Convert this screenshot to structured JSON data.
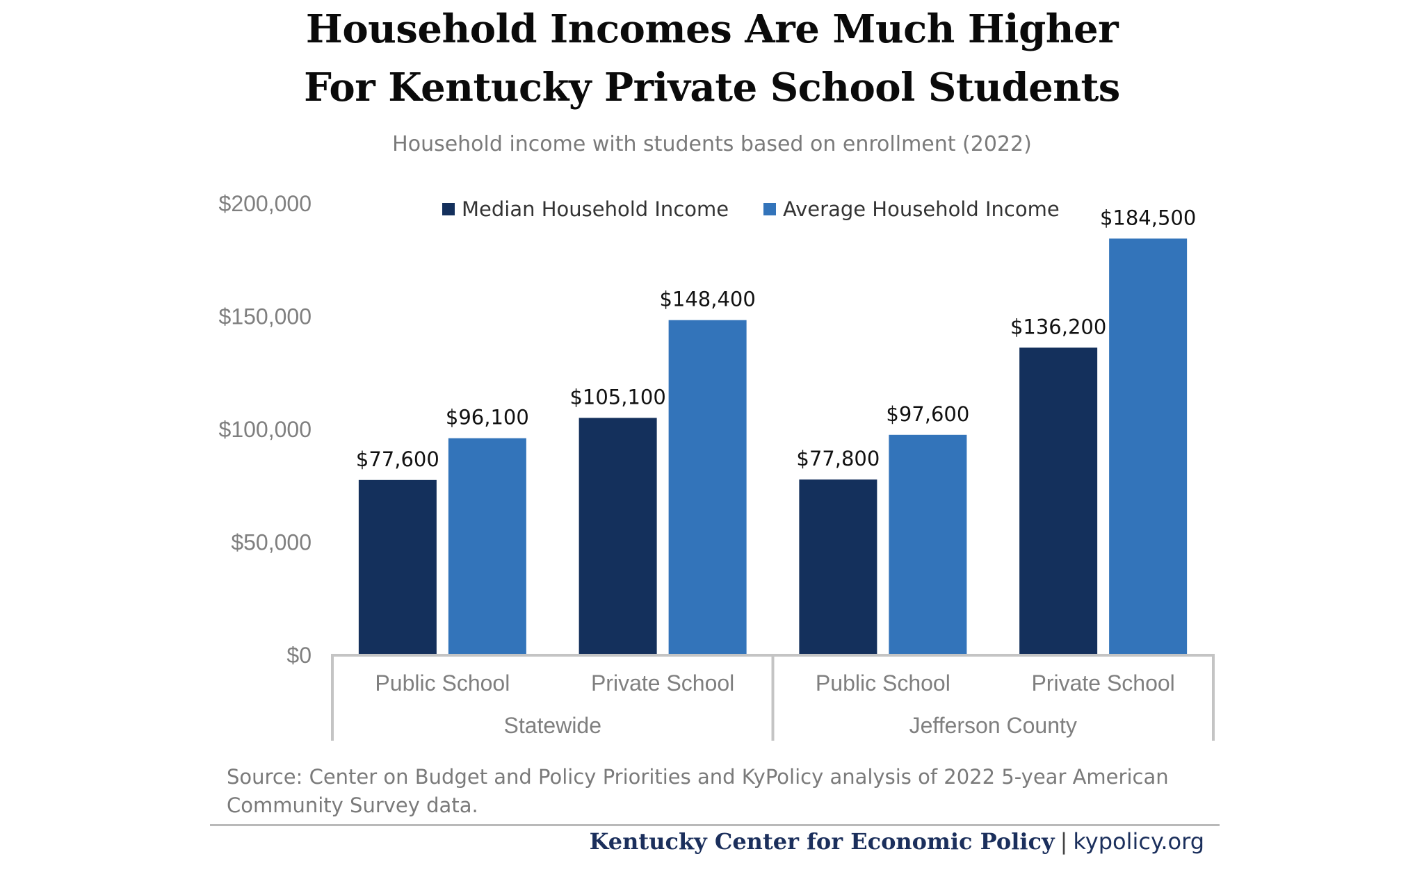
{
  "chart_data": {
    "type": "bar",
    "title": "Household Incomes Are Much Higher For Kentucky Private School Students",
    "title_lines": [
      "Household Incomes Are Much Higher",
      "For Kentucky Private School Students"
    ],
    "subtitle": "Household income with students based on enrollment (2022)",
    "groups": [
      "Statewide",
      "Jefferson County"
    ],
    "categories": [
      "Public School",
      "Private School",
      "Public School",
      "Private School"
    ],
    "category_groups": [
      "Statewide",
      "Statewide",
      "Jefferson County",
      "Jefferson County"
    ],
    "series": [
      {
        "name": "Median Household Income",
        "color": "#14305c",
        "values": [
          77600,
          105100,
          77800,
          136200
        ],
        "labels": [
          "$77,600",
          "$105,100",
          "$77,800",
          "$136,200"
        ]
      },
      {
        "name": "Average Household Income",
        "color": "#3374ba",
        "values": [
          96100,
          148400,
          97600,
          184500
        ],
        "labels": [
          "$96,100",
          "$148,400",
          "$97,600",
          "$184,500"
        ]
      }
    ],
    "ylim": [
      0,
      200000
    ],
    "yticks": [
      0,
      50000,
      100000,
      150000,
      200000
    ],
    "ytick_labels": [
      "$0",
      "$50,000",
      "$100,000",
      "$150,000",
      "$200,000"
    ],
    "xlabel": "",
    "ylabel": "",
    "grid": false,
    "legend_position": "top-center"
  },
  "source": "Source: Center on Budget and Policy Priorities and KyPolicy analysis of 2022 5-year American Community Survey data.",
  "footer": {
    "org": "Kentucky Center for Economic Policy",
    "separator": "|",
    "url": "kypolicy.org"
  }
}
